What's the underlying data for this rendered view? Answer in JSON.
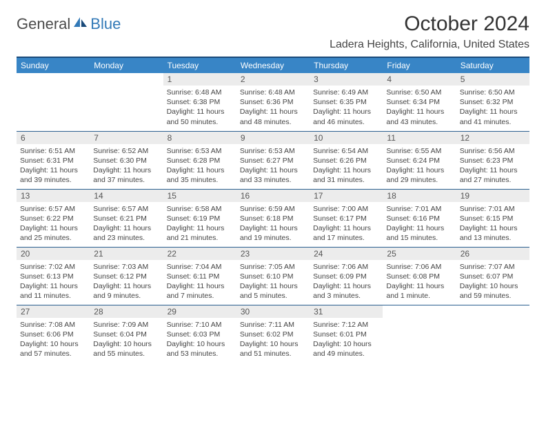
{
  "logo": {
    "part1": "General",
    "part2": "Blue"
  },
  "title": "October 2024",
  "location": "Ladera Heights, California, United States",
  "colors": {
    "header_bg": "#3885c6",
    "header_text": "#ffffff",
    "border_top": "#1a4a7a",
    "row_border": "#2a5f8f",
    "daynum_bg": "#ececec",
    "body_text": "#444444",
    "logo_accent": "#3279b7"
  },
  "day_headers": [
    "Sunday",
    "Monday",
    "Tuesday",
    "Wednesday",
    "Thursday",
    "Friday",
    "Saturday"
  ],
  "weeks": [
    [
      null,
      null,
      {
        "n": "1",
        "sr": "6:48 AM",
        "ss": "6:38 PM",
        "dl": "11 hours and 50 minutes."
      },
      {
        "n": "2",
        "sr": "6:48 AM",
        "ss": "6:36 PM",
        "dl": "11 hours and 48 minutes."
      },
      {
        "n": "3",
        "sr": "6:49 AM",
        "ss": "6:35 PM",
        "dl": "11 hours and 46 minutes."
      },
      {
        "n": "4",
        "sr": "6:50 AM",
        "ss": "6:34 PM",
        "dl": "11 hours and 43 minutes."
      },
      {
        "n": "5",
        "sr": "6:50 AM",
        "ss": "6:32 PM",
        "dl": "11 hours and 41 minutes."
      }
    ],
    [
      {
        "n": "6",
        "sr": "6:51 AM",
        "ss": "6:31 PM",
        "dl": "11 hours and 39 minutes."
      },
      {
        "n": "7",
        "sr": "6:52 AM",
        "ss": "6:30 PM",
        "dl": "11 hours and 37 minutes."
      },
      {
        "n": "8",
        "sr": "6:53 AM",
        "ss": "6:28 PM",
        "dl": "11 hours and 35 minutes."
      },
      {
        "n": "9",
        "sr": "6:53 AM",
        "ss": "6:27 PM",
        "dl": "11 hours and 33 minutes."
      },
      {
        "n": "10",
        "sr": "6:54 AM",
        "ss": "6:26 PM",
        "dl": "11 hours and 31 minutes."
      },
      {
        "n": "11",
        "sr": "6:55 AM",
        "ss": "6:24 PM",
        "dl": "11 hours and 29 minutes."
      },
      {
        "n": "12",
        "sr": "6:56 AM",
        "ss": "6:23 PM",
        "dl": "11 hours and 27 minutes."
      }
    ],
    [
      {
        "n": "13",
        "sr": "6:57 AM",
        "ss": "6:22 PM",
        "dl": "11 hours and 25 minutes."
      },
      {
        "n": "14",
        "sr": "6:57 AM",
        "ss": "6:21 PM",
        "dl": "11 hours and 23 minutes."
      },
      {
        "n": "15",
        "sr": "6:58 AM",
        "ss": "6:19 PM",
        "dl": "11 hours and 21 minutes."
      },
      {
        "n": "16",
        "sr": "6:59 AM",
        "ss": "6:18 PM",
        "dl": "11 hours and 19 minutes."
      },
      {
        "n": "17",
        "sr": "7:00 AM",
        "ss": "6:17 PM",
        "dl": "11 hours and 17 minutes."
      },
      {
        "n": "18",
        "sr": "7:01 AM",
        "ss": "6:16 PM",
        "dl": "11 hours and 15 minutes."
      },
      {
        "n": "19",
        "sr": "7:01 AM",
        "ss": "6:15 PM",
        "dl": "11 hours and 13 minutes."
      }
    ],
    [
      {
        "n": "20",
        "sr": "7:02 AM",
        "ss": "6:13 PM",
        "dl": "11 hours and 11 minutes."
      },
      {
        "n": "21",
        "sr": "7:03 AM",
        "ss": "6:12 PM",
        "dl": "11 hours and 9 minutes."
      },
      {
        "n": "22",
        "sr": "7:04 AM",
        "ss": "6:11 PM",
        "dl": "11 hours and 7 minutes."
      },
      {
        "n": "23",
        "sr": "7:05 AM",
        "ss": "6:10 PM",
        "dl": "11 hours and 5 minutes."
      },
      {
        "n": "24",
        "sr": "7:06 AM",
        "ss": "6:09 PM",
        "dl": "11 hours and 3 minutes."
      },
      {
        "n": "25",
        "sr": "7:06 AM",
        "ss": "6:08 PM",
        "dl": "11 hours and 1 minute."
      },
      {
        "n": "26",
        "sr": "7:07 AM",
        "ss": "6:07 PM",
        "dl": "10 hours and 59 minutes."
      }
    ],
    [
      {
        "n": "27",
        "sr": "7:08 AM",
        "ss": "6:06 PM",
        "dl": "10 hours and 57 minutes."
      },
      {
        "n": "28",
        "sr": "7:09 AM",
        "ss": "6:04 PM",
        "dl": "10 hours and 55 minutes."
      },
      {
        "n": "29",
        "sr": "7:10 AM",
        "ss": "6:03 PM",
        "dl": "10 hours and 53 minutes."
      },
      {
        "n": "30",
        "sr": "7:11 AM",
        "ss": "6:02 PM",
        "dl": "10 hours and 51 minutes."
      },
      {
        "n": "31",
        "sr": "7:12 AM",
        "ss": "6:01 PM",
        "dl": "10 hours and 49 minutes."
      },
      null,
      null
    ]
  ],
  "labels": {
    "sunrise": "Sunrise:",
    "sunset": "Sunset:",
    "daylight": "Daylight:"
  }
}
